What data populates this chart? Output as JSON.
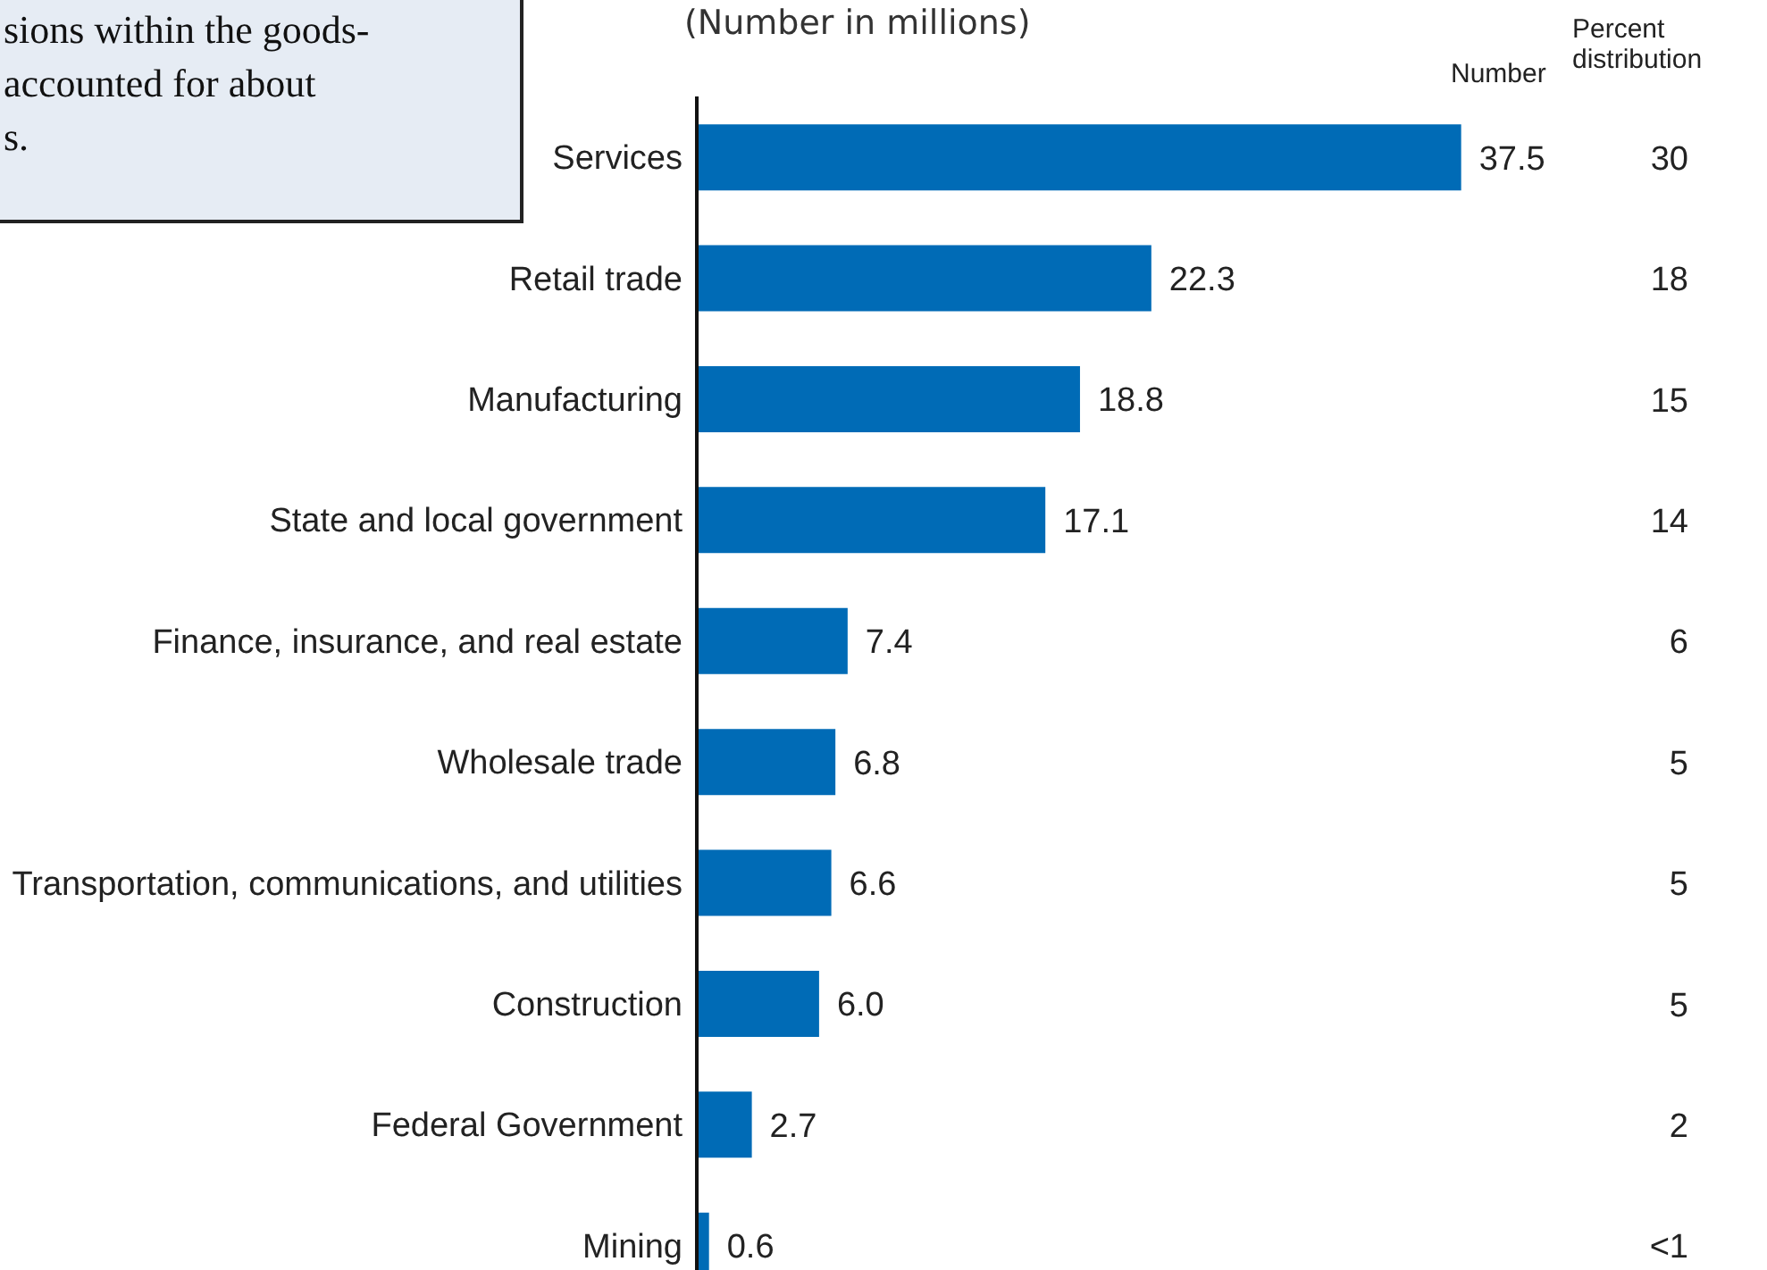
{
  "chart_data": {
    "type": "bar",
    "orientation": "horizontal",
    "subtitle": "(Number in millions)",
    "categories": [
      "Services",
      "Retail trade",
      "Manufacturing",
      "State and local government",
      "Finance, insurance, and real estate",
      "Wholesale trade",
      "Transportation, communications, and utilities",
      "Construction",
      "Federal Government",
      "Mining"
    ],
    "values": [
      37.5,
      22.3,
      18.8,
      17.1,
      7.4,
      6.8,
      6.6,
      6.0,
      2.7,
      0.6
    ],
    "value_labels": [
      "37.5",
      "22.3",
      "18.8",
      "17.1",
      "7.4",
      "6.8",
      "6.6",
      "6.0",
      "2.7",
      "0.6"
    ],
    "color": "#006bb6",
    "annotations": [
      "sions within the goods-\naccounted for about\ns.",
      "Number",
      "Percent distribution",
      "30",
      "18",
      "15",
      "14",
      "6",
      "5",
      "5",
      "5",
      "2",
      "<1"
    ]
  }
}
